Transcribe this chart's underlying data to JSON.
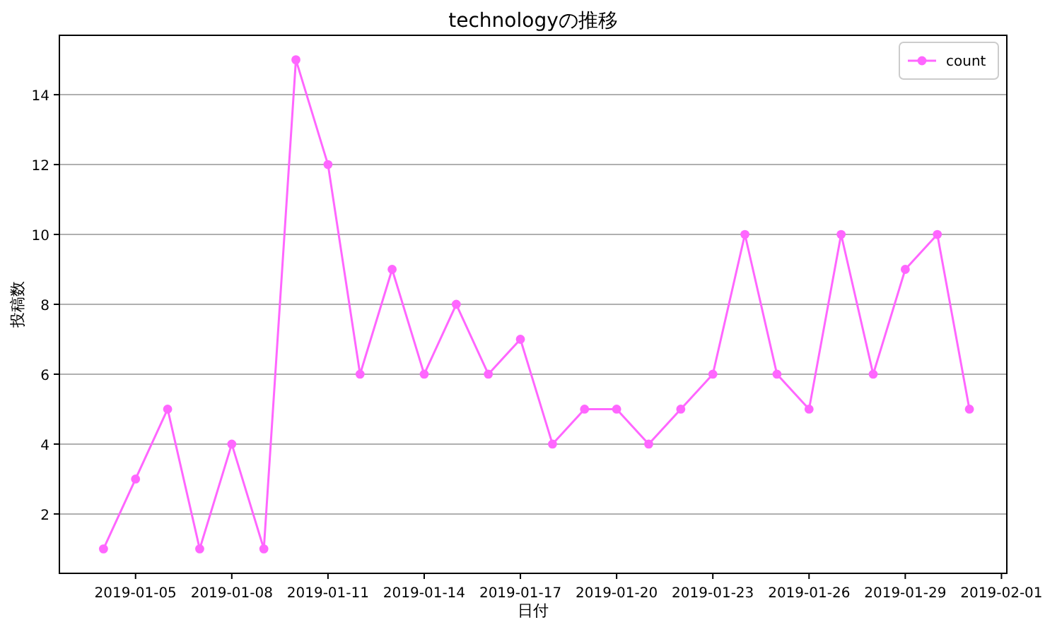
{
  "chart_data": {
    "type": "line",
    "title": "technologyの推移",
    "xlabel": "日付",
    "ylabel": "投稿数",
    "x": [
      "2019-01-04",
      "2019-01-05",
      "2019-01-06",
      "2019-01-07",
      "2019-01-08",
      "2019-01-09",
      "2019-01-10",
      "2019-01-11",
      "2019-01-12",
      "2019-01-13",
      "2019-01-14",
      "2019-01-15",
      "2019-01-16",
      "2019-01-17",
      "2019-01-18",
      "2019-01-19",
      "2019-01-20",
      "2019-01-21",
      "2019-01-22",
      "2019-01-23",
      "2019-01-24",
      "2019-01-25",
      "2019-01-26",
      "2019-01-27",
      "2019-01-28",
      "2019-01-29",
      "2019-01-30",
      "2019-01-31"
    ],
    "series": [
      {
        "name": "count",
        "color": "#ff66ff",
        "values": [
          1,
          3,
          5,
          1,
          4,
          1,
          15,
          12,
          6,
          9,
          6,
          8,
          6,
          7,
          4,
          5,
          5,
          4,
          5,
          6,
          10,
          6,
          5,
          10,
          6,
          9,
          10,
          5
        ]
      }
    ],
    "xlim": [
      "2019-01-02T15:00",
      "2019-02-01T04:00"
    ],
    "xticks": [
      "2019-01-05",
      "2019-01-08",
      "2019-01-11",
      "2019-01-14",
      "2019-01-17",
      "2019-01-20",
      "2019-01-23",
      "2019-01-26",
      "2019-01-29",
      "2019-02-01"
    ],
    "ylim": [
      0.3,
      15.7
    ],
    "yticks": [
      2,
      4,
      6,
      8,
      10,
      12,
      14
    ],
    "grid": "y",
    "legend": "top right",
    "marker": "circle",
    "line_style": "solid"
  }
}
